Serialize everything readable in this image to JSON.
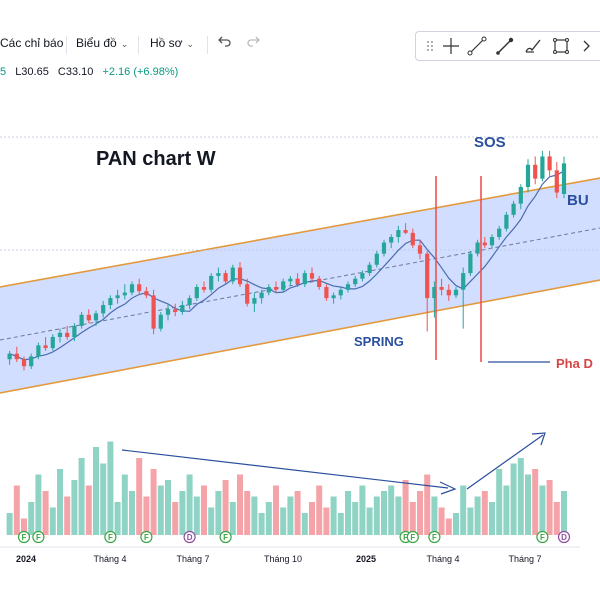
{
  "toolbar": {
    "indicators_label": "Các chỉ báo",
    "charts_label": "Biểu đồ",
    "profile_label": "Hồ sơ",
    "undo_icon": "undo-icon",
    "redo_icon": "redo-icon"
  },
  "drawing_tools": [
    "drag-handle-icon",
    "crosshair-icon",
    "trend-line-icon",
    "pen-icon",
    "brush-icon",
    "rectangle-icon",
    "more-icon"
  ],
  "ohlc": {
    "open_fragment": "5",
    "low": "L30.65",
    "close": "C33.10",
    "change": "+2.16 (+6.98%)"
  },
  "colors": {
    "up": "#26a69a",
    "down": "#ef5350",
    "volume_up": "#8fd3c5",
    "volume_down": "#f4a3a8",
    "channel_fill": "#c9d8ff",
    "channel_line": "#e39a3c",
    "ma_line": "#4b6cb0",
    "annotation": "#2b4f9e",
    "pha_d": "#d64545",
    "marker_f": "#3aa543",
    "marker_d": "#8e4fa0"
  },
  "chart_data": {
    "type": "candlestick",
    "title": "PAN chart W",
    "annotations": [
      "SOS",
      "BU",
      "SPRING",
      "Pha D"
    ],
    "x_axis_ticks": [
      "2024",
      "Tháng 4",
      "Tháng 7",
      "Tháng 10",
      "2025",
      "Tháng 4",
      "Tháng 7"
    ],
    "x_axis_bold": [
      "2024",
      "2025"
    ],
    "price_range": [
      17,
      35
    ],
    "volume_range": [
      0,
      100
    ],
    "candles": [
      [
        19.0,
        19.6,
        18.6,
        19.4
      ],
      [
        19.4,
        19.9,
        18.8,
        19.0
      ],
      [
        19.0,
        19.2,
        18.2,
        18.5
      ],
      [
        18.5,
        19.4,
        18.3,
        19.2
      ],
      [
        19.2,
        20.2,
        19.0,
        20.0
      ],
      [
        20.0,
        20.6,
        19.6,
        19.8
      ],
      [
        19.8,
        20.8,
        19.6,
        20.6
      ],
      [
        20.6,
        21.2,
        20.2,
        20.9
      ],
      [
        20.9,
        21.4,
        20.4,
        20.6
      ],
      [
        20.6,
        21.6,
        20.3,
        21.4
      ],
      [
        21.4,
        22.4,
        21.2,
        22.2
      ],
      [
        22.2,
        22.6,
        21.6,
        21.8
      ],
      [
        21.8,
        22.5,
        21.4,
        22.3
      ],
      [
        22.3,
        23.2,
        22.0,
        22.9
      ],
      [
        22.9,
        23.6,
        22.6,
        23.4
      ],
      [
        23.4,
        24.0,
        23.0,
        23.6
      ],
      [
        23.6,
        24.4,
        23.3,
        23.8
      ],
      [
        23.8,
        24.6,
        23.6,
        24.4
      ],
      [
        24.4,
        24.8,
        23.6,
        23.9
      ],
      [
        23.9,
        24.2,
        23.4,
        23.6
      ],
      [
        23.6,
        24.0,
        20.8,
        21.2
      ],
      [
        21.2,
        22.4,
        21.0,
        22.2
      ],
      [
        22.2,
        23.0,
        21.8,
        22.6
      ],
      [
        22.6,
        23.0,
        22.1,
        22.4
      ],
      [
        22.4,
        23.2,
        22.2,
        22.9
      ],
      [
        22.9,
        23.6,
        22.6,
        23.4
      ],
      [
        23.4,
        24.4,
        23.2,
        24.2
      ],
      [
        24.2,
        24.6,
        23.8,
        24.0
      ],
      [
        24.0,
        25.2,
        23.8,
        25.0
      ],
      [
        25.0,
        25.6,
        24.6,
        25.2
      ],
      [
        25.2,
        25.4,
        24.4,
        24.6
      ],
      [
        24.6,
        25.8,
        24.4,
        25.6
      ],
      [
        25.6,
        26.0,
        24.2,
        24.4
      ],
      [
        24.4,
        24.8,
        22.8,
        23.0
      ],
      [
        23.0,
        23.8,
        22.4,
        23.4
      ],
      [
        23.4,
        24.0,
        23.0,
        23.8
      ],
      [
        23.8,
        24.4,
        23.6,
        24.2
      ],
      [
        24.2,
        24.6,
        23.8,
        24.0
      ],
      [
        24.0,
        24.8,
        23.8,
        24.6
      ],
      [
        24.6,
        25.0,
        24.3,
        24.8
      ],
      [
        24.8,
        25.2,
        24.2,
        24.4
      ],
      [
        24.4,
        25.4,
        24.2,
        25.2
      ],
      [
        25.2,
        25.6,
        24.6,
        24.8
      ],
      [
        24.8,
        25.0,
        24.0,
        24.2
      ],
      [
        24.2,
        24.4,
        23.2,
        23.4
      ],
      [
        23.4,
        23.8,
        23.0,
        23.6
      ],
      [
        23.6,
        24.2,
        23.3,
        24.0
      ],
      [
        24.0,
        24.6,
        23.8,
        24.4
      ],
      [
        24.4,
        25.0,
        24.2,
        24.8
      ],
      [
        24.8,
        25.4,
        24.6,
        25.2
      ],
      [
        25.2,
        26.0,
        25.0,
        25.8
      ],
      [
        25.8,
        26.8,
        25.6,
        26.6
      ],
      [
        26.6,
        27.6,
        26.4,
        27.4
      ],
      [
        27.4,
        28.0,
        27.0,
        27.8
      ],
      [
        27.8,
        28.6,
        27.4,
        28.3
      ],
      [
        28.3,
        28.8,
        28.0,
        28.1
      ],
      [
        28.1,
        28.4,
        27.0,
        27.2
      ],
      [
        27.2,
        27.6,
        26.2,
        26.6
      ],
      [
        26.6,
        26.8,
        21.0,
        23.4
      ],
      [
        23.4,
        24.6,
        22.0,
        24.2
      ],
      [
        24.2,
        24.8,
        23.6,
        24.0
      ],
      [
        24.0,
        24.4,
        23.2,
        23.6
      ],
      [
        23.6,
        24.2,
        23.4,
        24.0
      ],
      [
        24.0,
        25.6,
        21.2,
        25.2
      ],
      [
        25.2,
        26.8,
        25.0,
        26.6
      ],
      [
        26.6,
        27.6,
        26.4,
        27.4
      ],
      [
        27.4,
        27.8,
        27.0,
        27.2
      ],
      [
        27.2,
        28.0,
        27.0,
        27.8
      ],
      [
        27.8,
        28.6,
        27.6,
        28.4
      ],
      [
        28.4,
        29.6,
        28.2,
        29.4
      ],
      [
        29.4,
        30.4,
        29.2,
        30.2
      ],
      [
        30.2,
        31.6,
        29.8,
        31.4
      ],
      [
        31.4,
        33.4,
        31.0,
        33.0
      ],
      [
        33.0,
        33.6,
        31.6,
        32.0
      ],
      [
        32.0,
        34.0,
        31.8,
        33.6
      ],
      [
        33.6,
        34.0,
        32.2,
        32.6
      ],
      [
        32.6,
        33.2,
        30.6,
        31.0
      ],
      [
        30.9,
        33.6,
        30.6,
        33.1
      ]
    ],
    "volumes": [
      20,
      45,
      15,
      30,
      55,
      40,
      25,
      60,
      35,
      50,
      70,
      45,
      80,
      65,
      85,
      30,
      55,
      40,
      70,
      35,
      60,
      45,
      50,
      30,
      40,
      55,
      35,
      45,
      25,
      40,
      50,
      30,
      55,
      40,
      35,
      20,
      30,
      45,
      25,
      35,
      40,
      20,
      30,
      45,
      25,
      35,
      20,
      40,
      30,
      45,
      25,
      35,
      40,
      45,
      35,
      50,
      30,
      40,
      55,
      35,
      25,
      15,
      20,
      45,
      25,
      35,
      40,
      30,
      60,
      45,
      65,
      70,
      55,
      60,
      45,
      50,
      30,
      40
    ],
    "volume_markers": [
      {
        "bar": 2,
        "label": "F"
      },
      {
        "bar": 4,
        "label": "F"
      },
      {
        "bar": 14,
        "label": "F"
      },
      {
        "bar": 19,
        "label": "F"
      },
      {
        "bar": 25,
        "label": "D"
      },
      {
        "bar": 30,
        "label": "F"
      },
      {
        "bar": 55,
        "label": "F"
      },
      {
        "bar": 56,
        "label": "F"
      },
      {
        "bar": 59,
        "label": "F"
      },
      {
        "bar": 74,
        "label": "F"
      },
      {
        "bar": 77,
        "label": "D"
      }
    ]
  }
}
